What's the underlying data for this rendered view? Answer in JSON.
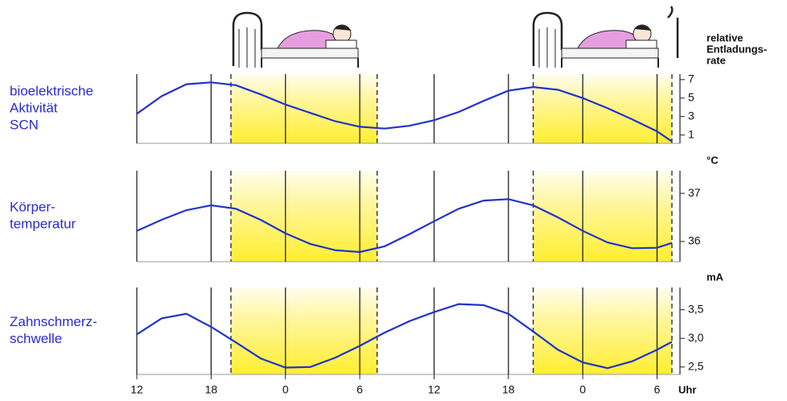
{
  "chart_data": [
    {
      "type": "line",
      "title": [
        "bioelektrische",
        "Aktivität",
        "SCN"
      ],
      "ylabel": [
        "relative",
        "Entladungs-",
        "rate"
      ],
      "x": [
        12,
        14,
        16,
        18,
        20,
        22,
        24,
        26,
        28,
        30,
        32,
        34,
        36,
        38,
        40,
        42,
        44,
        46,
        48,
        50,
        52,
        54,
        55.2
      ],
      "values": [
        3.3,
        5.2,
        6.5,
        6.7,
        6.4,
        5.4,
        4.3,
        3.4,
        2.5,
        1.9,
        1.7,
        2.0,
        2.6,
        3.5,
        4.7,
        5.8,
        6.2,
        5.9,
        5.0,
        3.9,
        2.7,
        1.4,
        0.3
      ],
      "color": "#2233cc",
      "xlim": [
        12,
        55.2
      ],
      "xticks": [
        12,
        18,
        24,
        30,
        36,
        42,
        48,
        54
      ],
      "ylim": [
        0.1,
        7.6
      ],
      "yticks": [
        1,
        3,
        5,
        7
      ],
      "shaded_intervals": [
        [
          19.6,
          31.4
        ],
        [
          44,
          55.2
        ]
      ],
      "grid": true
    },
    {
      "type": "line",
      "title": [
        "Körper-",
        "temperatur"
      ],
      "ylabel": [
        "°C"
      ],
      "x": [
        12,
        14,
        16,
        18,
        20,
        22,
        24,
        26,
        28,
        30,
        32,
        34,
        36,
        38,
        40,
        42,
        44,
        46,
        48,
        50,
        52,
        54,
        55.2
      ],
      "values": [
        36.22,
        36.45,
        36.65,
        36.75,
        36.68,
        36.45,
        36.17,
        35.95,
        35.82,
        35.78,
        35.9,
        36.15,
        36.42,
        36.68,
        36.85,
        36.88,
        36.75,
        36.5,
        36.22,
        35.98,
        35.86,
        35.87,
        35.97
      ],
      "color": "#2233cc",
      "xlim": [
        12,
        55.2
      ],
      "xticks": [
        12,
        18,
        24,
        30,
        36,
        42,
        48,
        54
      ],
      "ylim": [
        35.58,
        37.47
      ],
      "yticks": [
        36,
        37
      ],
      "shaded_intervals": [
        [
          19.6,
          31.4
        ],
        [
          44,
          55.2
        ]
      ],
      "grid": true
    },
    {
      "type": "line",
      "title": [
        "Zahnschmerz-",
        "schwelle"
      ],
      "ylabel": [
        "mA"
      ],
      "xlabel": "Uhr",
      "x": [
        12,
        14,
        16,
        18,
        20,
        22,
        24,
        26,
        28,
        30,
        32,
        34,
        36,
        38,
        40,
        42,
        44,
        46,
        48,
        50,
        52,
        54,
        55.2
      ],
      "values": [
        3.07,
        3.35,
        3.43,
        3.2,
        2.93,
        2.65,
        2.49,
        2.5,
        2.66,
        2.87,
        3.1,
        3.3,
        3.46,
        3.6,
        3.58,
        3.43,
        3.12,
        2.8,
        2.58,
        2.48,
        2.6,
        2.8,
        2.94
      ],
      "color": "#2233cc",
      "xlim": [
        12,
        55.2
      ],
      "xticks": [
        {
          "value": 12,
          "label": "12"
        },
        {
          "value": 18,
          "label": "18"
        },
        {
          "value": 24,
          "label": "0"
        },
        {
          "value": 30,
          "label": "6"
        },
        {
          "value": 36,
          "label": "12"
        },
        {
          "value": 42,
          "label": "18"
        },
        {
          "value": 48,
          "label": "0"
        },
        {
          "value": 54,
          "label": "6"
        }
      ],
      "ylim": [
        2.37,
        3.89
      ],
      "yticks": [
        {
          "value": 2.5,
          "label": "2,5"
        },
        {
          "value": 3,
          "label": "3,0"
        },
        {
          "value": 3.5,
          "label": "3,5"
        }
      ],
      "shaded_intervals": [
        [
          19.6,
          31.4
        ],
        [
          44,
          55.2
        ]
      ],
      "grid": true
    }
  ]
}
